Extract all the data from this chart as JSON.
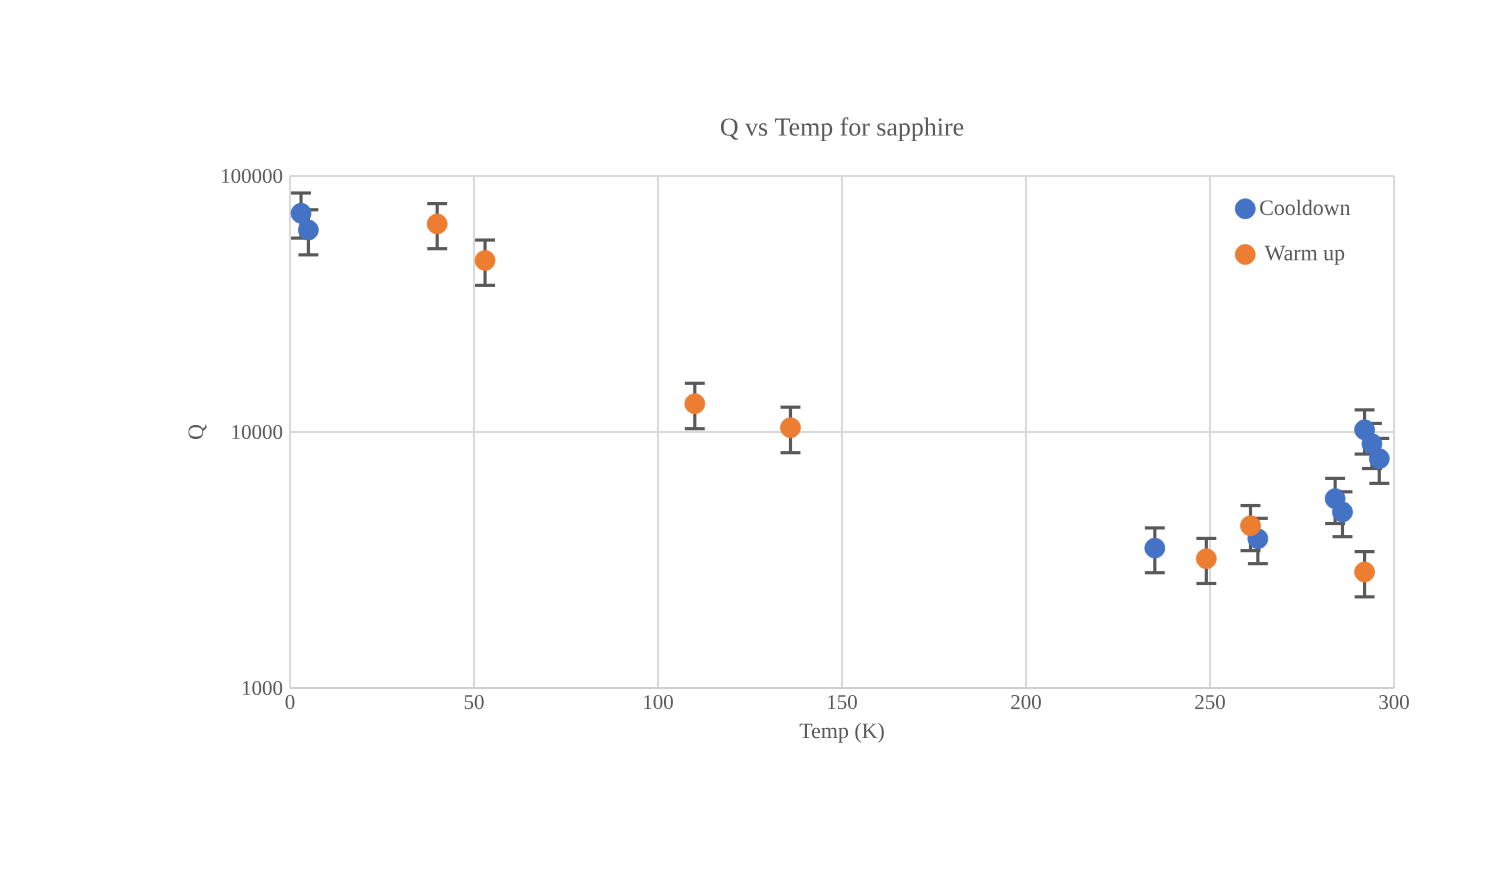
{
  "chart_data": {
    "type": "scatter",
    "title": "Q vs Temp for sapphire",
    "xlabel": "Temp (K)",
    "ylabel": "Q",
    "xlim": [
      0,
      300
    ],
    "ylim": [
      1000,
      100000
    ],
    "xticks": [
      0,
      50,
      100,
      150,
      200,
      250,
      300
    ],
    "yticks": [
      1000,
      10000,
      100000
    ],
    "log": "y",
    "grid": true,
    "legend": "top right",
    "series": [
      {
        "name": "Cooldown",
        "color": "#4472c4",
        "x": [
          3,
          5,
          235,
          263,
          284,
          286,
          292,
          294,
          296
        ],
        "values": [
          71500,
          61500,
          3520,
          3830,
          5490,
          4870,
          10200,
          9000,
          7870
        ],
        "errors": [
          14300,
          12300,
          700,
          770,
          1100,
          970,
          2000,
          1800,
          1570
        ]
      },
      {
        "name": "Warm up",
        "color": "#ed7d31",
        "x": [
          40,
          53,
          110,
          136,
          249,
          261,
          292
        ],
        "values": [
          65000,
          46800,
          12900,
          10400,
          3200,
          4300,
          2840
        ],
        "errors": [
          13000,
          9400,
          2600,
          2100,
          640,
          860,
          570
        ]
      }
    ]
  }
}
